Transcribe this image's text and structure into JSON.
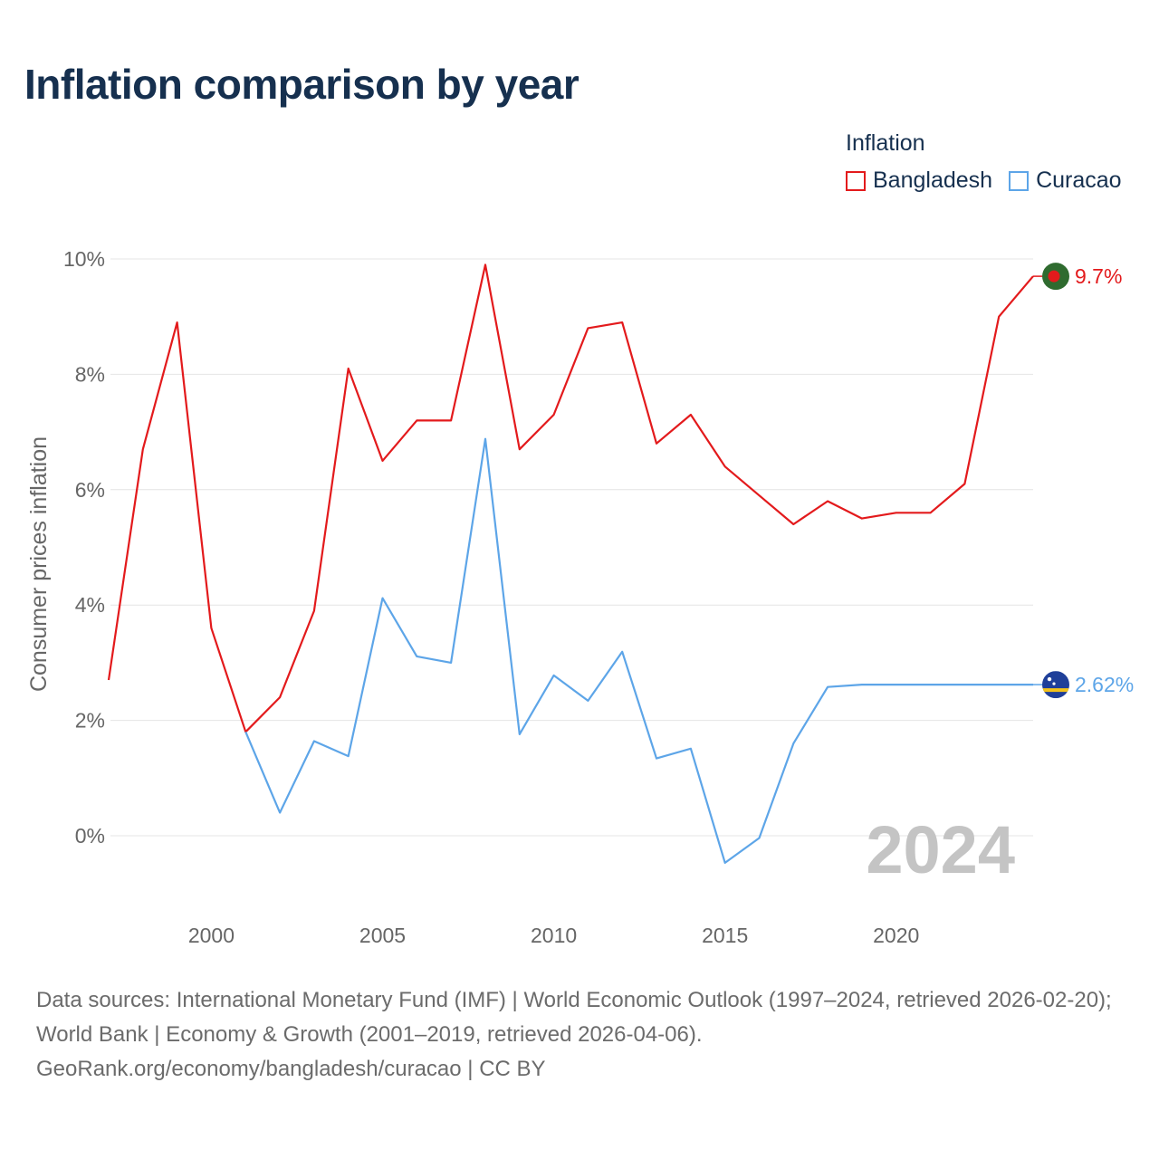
{
  "title": "Inflation comparison by year",
  "legend": {
    "title": "Inflation",
    "items": [
      {
        "label": "Bangladesh",
        "color": "#e31a1c"
      },
      {
        "label": "Curacao",
        "color": "#5da5e8"
      }
    ]
  },
  "chart_data": {
    "type": "line",
    "title": "Inflation comparison by year",
    "xlabel": "",
    "ylabel": "Consumer prices inflation",
    "xlim": [
      1997,
      2024
    ],
    "ylim": [
      -1.2,
      10.4
    ],
    "x_ticks": [
      2000,
      2005,
      2010,
      2015,
      2020
    ],
    "y_ticks": [
      {
        "value": 0,
        "label": "0%"
      },
      {
        "value": 2,
        "label": "2%"
      },
      {
        "value": 4,
        "label": "4%"
      },
      {
        "value": 6,
        "label": "6%"
      },
      {
        "value": 8,
        "label": "8%"
      },
      {
        "value": 10,
        "label": "10%"
      }
    ],
    "grid": true,
    "watermark_year": "2024",
    "series": [
      {
        "name": "Bangladesh",
        "color": "#e31a1c",
        "end_label": "9.7%",
        "end_icon": "bangladesh-flag-icon",
        "x": [
          1997,
          1998,
          1999,
          2000,
          2001,
          2002,
          2003,
          2004,
          2005,
          2006,
          2007,
          2008,
          2009,
          2010,
          2011,
          2012,
          2013,
          2014,
          2015,
          2016,
          2017,
          2018,
          2019,
          2020,
          2021,
          2022,
          2023,
          2024
        ],
        "values": [
          2.7,
          6.7,
          8.9,
          3.6,
          1.8,
          2.4,
          3.9,
          8.1,
          6.5,
          7.2,
          7.2,
          9.9,
          6.7,
          7.3,
          8.8,
          8.9,
          6.8,
          7.3,
          6.4,
          5.9,
          5.4,
          5.8,
          5.5,
          5.6,
          5.6,
          6.1,
          9.0,
          9.7
        ]
      },
      {
        "name": "Curacao",
        "color": "#5da5e8",
        "end_label": "2.62%",
        "end_icon": "curacao-flag-icon",
        "x": [
          2001,
          2002,
          2003,
          2004,
          2005,
          2006,
          2007,
          2008,
          2009,
          2010,
          2011,
          2012,
          2013,
          2014,
          2015,
          2016,
          2017,
          2018,
          2019,
          2020,
          2021,
          2022,
          2023,
          2024
        ],
        "values": [
          1.8,
          0.4,
          1.64,
          1.38,
          4.12,
          3.11,
          3.0,
          6.88,
          1.76,
          2.78,
          2.34,
          3.19,
          1.34,
          1.51,
          -0.47,
          -0.04,
          1.6,
          2.58,
          2.62,
          2.62,
          2.62,
          2.62,
          2.62,
          2.62
        ]
      }
    ]
  },
  "footer": {
    "sources": "Data sources: International Monetary Fund (IMF) | World Economic Outlook (1997–2024, retrieved 2026-02-20); World Bank | Economy & Growth (2001–2019, retrieved 2026-04-06).",
    "attribution": "GeoRank.org/economy/bangladesh/curacao | CC BY"
  }
}
